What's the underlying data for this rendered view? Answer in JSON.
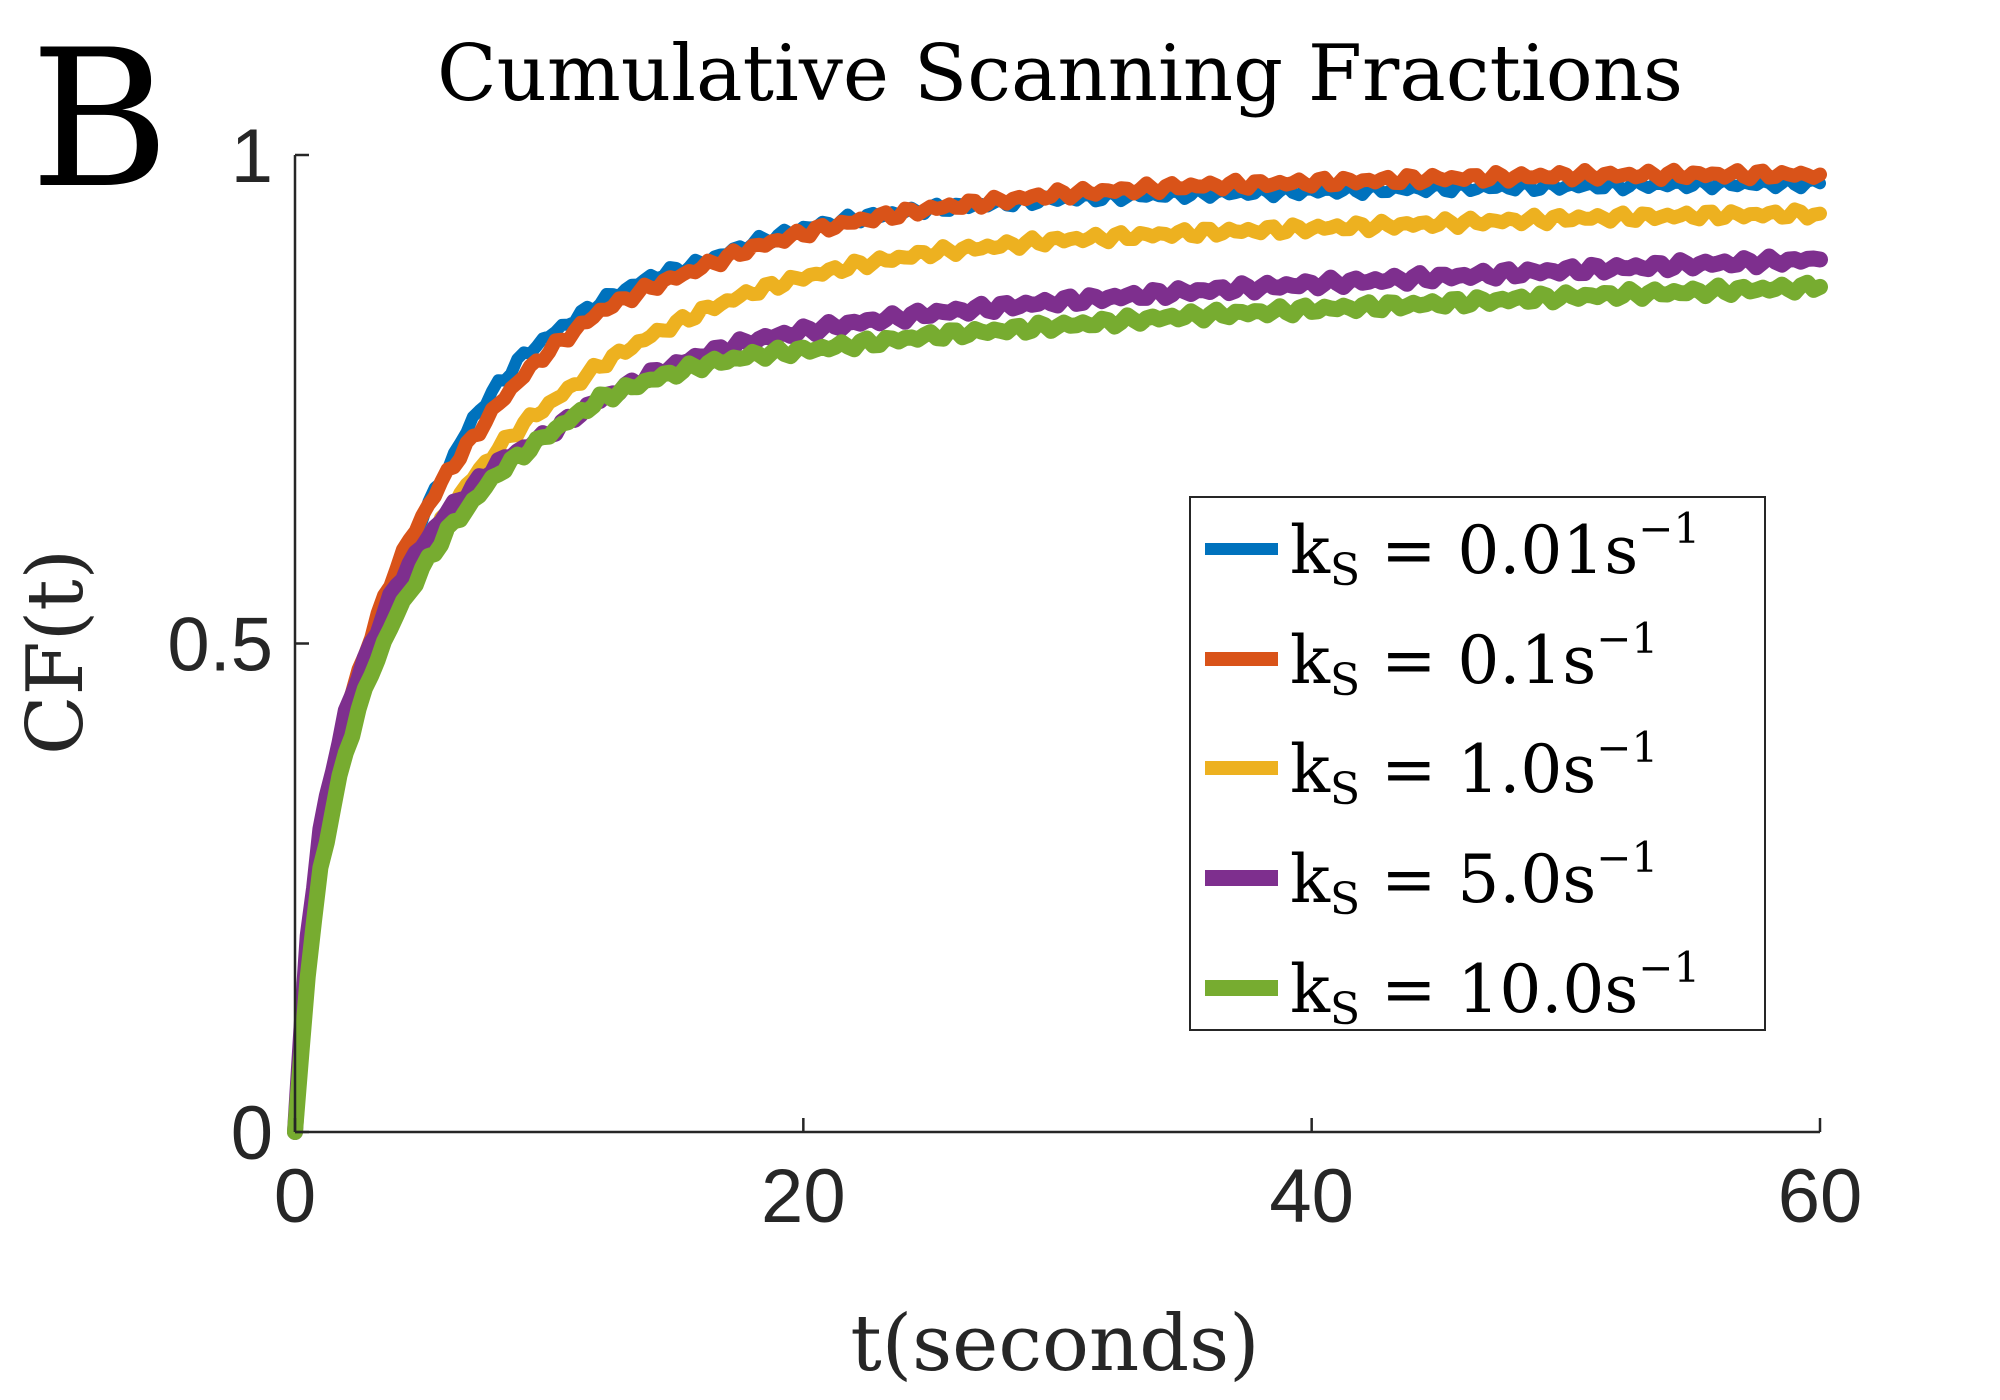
{
  "panel_label": "B",
  "chart_data": {
    "type": "line",
    "title": "Cumulative Scanning Fractions",
    "xlabel": "t(seconds)",
    "ylabel": "CF(t)",
    "xlim": [
      0,
      60
    ],
    "ylim": [
      0,
      1
    ],
    "xticks": [
      0,
      20,
      40,
      60
    ],
    "yticks": [
      0,
      0.5,
      1
    ],
    "xtick_labels": [
      "0",
      "20",
      "40",
      "60"
    ],
    "ytick_labels": [
      "0",
      "0.5",
      "1"
    ],
    "grid": false,
    "legend_position": "right",
    "series": [
      {
        "name": "k_S = 0.01s^-1",
        "legend_main": "k",
        "legend_sub": "S",
        "legend_eq": " = 0.01s",
        "legend_sup": "−1",
        "color": "#0072BD",
        "x": [
          0,
          0.5,
          1,
          2,
          3,
          4,
          5,
          6,
          7,
          8,
          9,
          10,
          12,
          14,
          16,
          18,
          20,
          22,
          25,
          30,
          35,
          40,
          45,
          50,
          55,
          60
        ],
        "y": [
          0,
          0.17,
          0.29,
          0.42,
          0.5,
          0.57,
          0.63,
          0.68,
          0.73,
          0.765,
          0.795,
          0.815,
          0.85,
          0.875,
          0.89,
          0.91,
          0.925,
          0.935,
          0.945,
          0.955,
          0.96,
          0.963,
          0.966,
          0.968,
          0.97,
          0.971
        ]
      },
      {
        "name": "k_S = 0.1s^-1",
        "legend_main": "k",
        "legend_sub": "S",
        "legend_eq": " = 0.1s",
        "legend_sup": "−1",
        "color": "#D95319",
        "x": [
          0,
          0.5,
          1,
          2,
          3,
          4,
          5,
          6,
          7,
          8,
          9,
          10,
          12,
          14,
          16,
          18,
          20,
          22,
          25,
          30,
          35,
          40,
          45,
          50,
          55,
          60
        ],
        "y": [
          0,
          0.18,
          0.3,
          0.43,
          0.51,
          0.58,
          0.63,
          0.675,
          0.71,
          0.745,
          0.775,
          0.8,
          0.84,
          0.865,
          0.885,
          0.905,
          0.92,
          0.932,
          0.945,
          0.96,
          0.968,
          0.972,
          0.976,
          0.979,
          0.98,
          0.98
        ]
      },
      {
        "name": "k_S = 1.0s^-1",
        "legend_main": "k",
        "legend_sub": "S",
        "legend_eq": " = 1.0s",
        "legend_sup": "−1",
        "color": "#EDB120",
        "x": [
          0,
          0.5,
          1,
          2,
          3,
          4,
          5,
          6,
          7,
          8,
          9,
          10,
          12,
          14,
          16,
          18,
          20,
          22,
          25,
          30,
          35,
          40,
          45,
          50,
          55,
          60
        ],
        "y": [
          0,
          0.17,
          0.28,
          0.4,
          0.48,
          0.54,
          0.59,
          0.635,
          0.67,
          0.7,
          0.725,
          0.745,
          0.785,
          0.815,
          0.84,
          0.86,
          0.875,
          0.887,
          0.9,
          0.913,
          0.92,
          0.925,
          0.93,
          0.935,
          0.938,
          0.94
        ]
      },
      {
        "name": "k_S = 5.0s^-1",
        "legend_main": "k",
        "legend_sub": "S",
        "legend_eq": " = 5.0s",
        "legend_sup": "−1",
        "color": "#7E2F8E",
        "x": [
          0,
          0.5,
          1,
          2,
          3,
          4,
          5,
          6,
          7,
          8,
          9,
          10,
          12,
          14,
          16,
          18,
          20,
          22,
          25,
          30,
          35,
          40,
          45,
          50,
          55,
          60
        ],
        "y": [
          0,
          0.2,
          0.31,
          0.43,
          0.5,
          0.56,
          0.6,
          0.635,
          0.66,
          0.685,
          0.7,
          0.715,
          0.75,
          0.775,
          0.795,
          0.81,
          0.82,
          0.828,
          0.838,
          0.85,
          0.86,
          0.868,
          0.875,
          0.882,
          0.888,
          0.893
        ]
      },
      {
        "name": "k_S = 10.0s^-1",
        "legend_main": "k",
        "legend_sub": "S",
        "legend_eq": " = 10.0s",
        "legend_sup": "−1",
        "color": "#77AC30",
        "x": [
          0,
          0.5,
          1,
          2,
          3,
          4,
          5,
          6,
          7,
          8,
          9,
          10,
          12,
          14,
          16,
          18,
          20,
          22,
          25,
          30,
          35,
          40,
          45,
          50,
          55,
          60
        ],
        "y": [
          0,
          0.16,
          0.27,
          0.39,
          0.47,
          0.53,
          0.575,
          0.615,
          0.645,
          0.675,
          0.695,
          0.715,
          0.75,
          0.77,
          0.785,
          0.795,
          0.8,
          0.806,
          0.815,
          0.825,
          0.835,
          0.842,
          0.848,
          0.855,
          0.86,
          0.865
        ]
      }
    ]
  }
}
